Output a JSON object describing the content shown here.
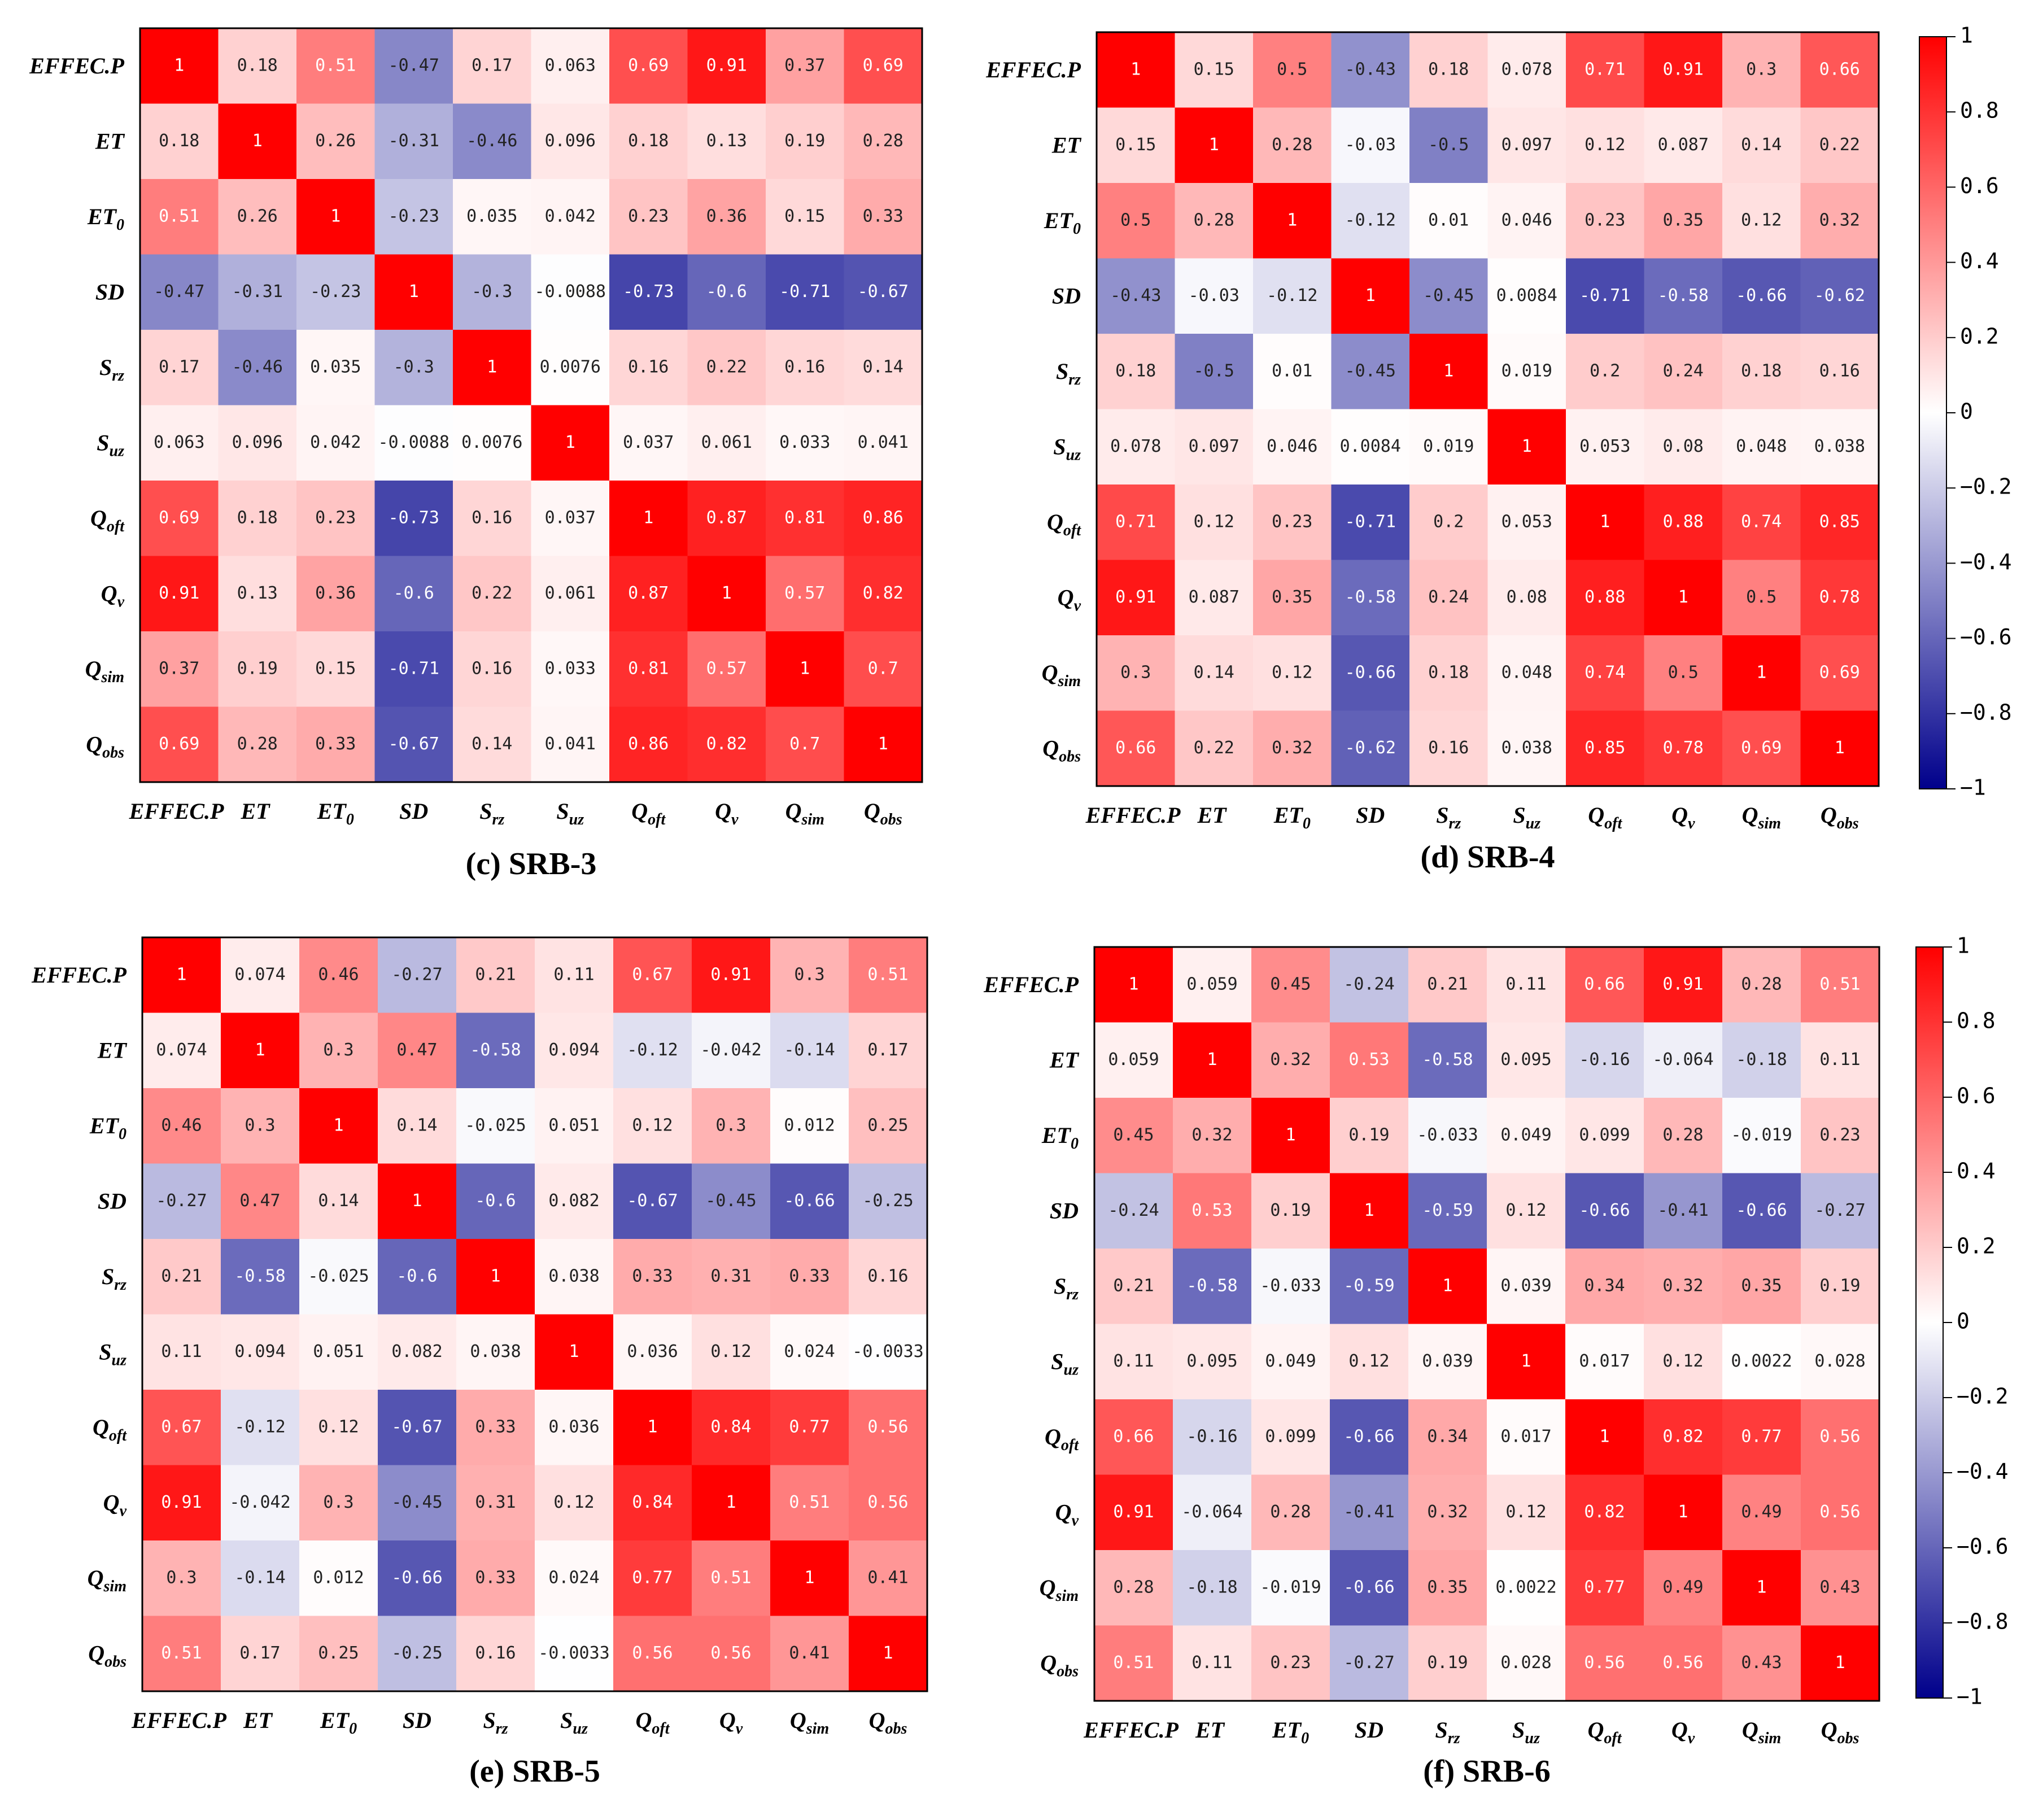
{
  "chart_data": [
    {
      "type": "heatmap",
      "title": "(c) SRB-3",
      "labels": [
        "EFFEC.P",
        "ET",
        "ET0",
        "SD",
        "Srz",
        "Suz",
        "Qoft",
        "Qv",
        "Qsim",
        "Qobs"
      ],
      "values": [
        [
          "1",
          "0.18",
          "0.51",
          "-0.47",
          "0.17",
          "0.063",
          "0.69",
          "0.91",
          "0.37",
          "0.69"
        ],
        [
          "0.18",
          "1",
          "0.26",
          "-0.31",
          "-0.46",
          "0.096",
          "0.18",
          "0.13",
          "0.19",
          "0.28"
        ],
        [
          "0.51",
          "0.26",
          "1",
          "-0.23",
          "0.035",
          "0.042",
          "0.23",
          "0.36",
          "0.15",
          "0.33"
        ],
        [
          "-0.47",
          "-0.31",
          "-0.23",
          "1",
          "-0.3",
          "-0.0088",
          "-0.73",
          "-0.6",
          "-0.71",
          "-0.67"
        ],
        [
          "0.17",
          "-0.46",
          "0.035",
          "-0.3",
          "1",
          "0.0076",
          "0.16",
          "0.22",
          "0.16",
          "0.14"
        ],
        [
          "0.063",
          "0.096",
          "0.042",
          "-0.0088",
          "0.0076",
          "1",
          "0.037",
          "0.061",
          "0.033",
          "0.041"
        ],
        [
          "0.69",
          "0.18",
          "0.23",
          "-0.73",
          "0.16",
          "0.037",
          "1",
          "0.87",
          "0.81",
          "0.86"
        ],
        [
          "0.91",
          "0.13",
          "0.36",
          "-0.6",
          "0.22",
          "0.061",
          "0.87",
          "1",
          "0.57",
          "0.82"
        ],
        [
          "0.37",
          "0.19",
          "0.15",
          "-0.71",
          "0.16",
          "0.033",
          "0.81",
          "0.57",
          "1",
          "0.7"
        ],
        [
          "0.69",
          "0.28",
          "0.33",
          "-0.67",
          "0.14",
          "0.041",
          "0.86",
          "0.82",
          "0.7",
          "1"
        ]
      ]
    },
    {
      "type": "heatmap",
      "title": "(d) SRB-4",
      "labels": [
        "EFFEC.P",
        "ET",
        "ET0",
        "SD",
        "Srz",
        "Suz",
        "Qoft",
        "Qv",
        "Qsim",
        "Qobs"
      ],
      "values": [
        [
          "1",
          "0.15",
          "0.5",
          "-0.43",
          "0.18",
          "0.078",
          "0.71",
          "0.91",
          "0.3",
          "0.66"
        ],
        [
          "0.15",
          "1",
          "0.28",
          "-0.03",
          "-0.5",
          "0.097",
          "0.12",
          "0.087",
          "0.14",
          "0.22"
        ],
        [
          "0.5",
          "0.28",
          "1",
          "-0.12",
          "0.01",
          "0.046",
          "0.23",
          "0.35",
          "0.12",
          "0.32"
        ],
        [
          "-0.43",
          "-0.03",
          "-0.12",
          "1",
          "-0.45",
          "0.0084",
          "-0.71",
          "-0.58",
          "-0.66",
          "-0.62"
        ],
        [
          "0.18",
          "-0.5",
          "0.01",
          "-0.45",
          "1",
          "0.019",
          "0.2",
          "0.24",
          "0.18",
          "0.16"
        ],
        [
          "0.078",
          "0.097",
          "0.046",
          "0.0084",
          "0.019",
          "1",
          "0.053",
          "0.08",
          "0.048",
          "0.038"
        ],
        [
          "0.71",
          "0.12",
          "0.23",
          "-0.71",
          "0.2",
          "0.053",
          "1",
          "0.88",
          "0.74",
          "0.85"
        ],
        [
          "0.91",
          "0.087",
          "0.35",
          "-0.58",
          "0.24",
          "0.08",
          "0.88",
          "1",
          "0.5",
          "0.78"
        ],
        [
          "0.3",
          "0.14",
          "0.12",
          "-0.66",
          "0.18",
          "0.048",
          "0.74",
          "0.5",
          "1",
          "0.69"
        ],
        [
          "0.66",
          "0.22",
          "0.32",
          "-0.62",
          "0.16",
          "0.038",
          "0.85",
          "0.78",
          "0.69",
          "1"
        ]
      ]
    },
    {
      "type": "heatmap",
      "title": "(e) SRB-5",
      "labels": [
        "EFFEC.P",
        "ET",
        "ET0",
        "SD",
        "Srz",
        "Suz",
        "Qoft",
        "Qv",
        "Qsim",
        "Qobs"
      ],
      "values": [
        [
          "1",
          "0.074",
          "0.46",
          "-0.27",
          "0.21",
          "0.11",
          "0.67",
          "0.91",
          "0.3",
          "0.51"
        ],
        [
          "0.074",
          "1",
          "0.3",
          "0.47",
          "-0.58",
          "0.094",
          "-0.12",
          "-0.042",
          "-0.14",
          "0.17"
        ],
        [
          "0.46",
          "0.3",
          "1",
          "0.14",
          "-0.025",
          "0.051",
          "0.12",
          "0.3",
          "0.012",
          "0.25"
        ],
        [
          "-0.27",
          "0.47",
          "0.14",
          "1",
          "-0.6",
          "0.082",
          "-0.67",
          "-0.45",
          "-0.66",
          "-0.25"
        ],
        [
          "0.21",
          "-0.58",
          "-0.025",
          "-0.6",
          "1",
          "0.038",
          "0.33",
          "0.31",
          "0.33",
          "0.16"
        ],
        [
          "0.11",
          "0.094",
          "0.051",
          "0.082",
          "0.038",
          "1",
          "0.036",
          "0.12",
          "0.024",
          "-0.0033"
        ],
        [
          "0.67",
          "-0.12",
          "0.12",
          "-0.67",
          "0.33",
          "0.036",
          "1",
          "0.84",
          "0.77",
          "0.56"
        ],
        [
          "0.91",
          "-0.042",
          "0.3",
          "-0.45",
          "0.31",
          "0.12",
          "0.84",
          "1",
          "0.51",
          "0.56"
        ],
        [
          "0.3",
          "-0.14",
          "0.012",
          "-0.66",
          "0.33",
          "0.024",
          "0.77",
          "0.51",
          "1",
          "0.41"
        ],
        [
          "0.51",
          "0.17",
          "0.25",
          "-0.25",
          "0.16",
          "-0.0033",
          "0.56",
          "0.56",
          "0.41",
          "1"
        ]
      ]
    },
    {
      "type": "heatmap",
      "title": "(f) SRB-6",
      "labels": [
        "EFFEC.P",
        "ET",
        "ET0",
        "SD",
        "Srz",
        "Suz",
        "Qoft",
        "Qv",
        "Qsim",
        "Qobs"
      ],
      "values": [
        [
          "1",
          "0.059",
          "0.45",
          "-0.24",
          "0.21",
          "0.11",
          "0.66",
          "0.91",
          "0.28",
          "0.51"
        ],
        [
          "0.059",
          "1",
          "0.32",
          "0.53",
          "-0.58",
          "0.095",
          "-0.16",
          "-0.064",
          "-0.18",
          "0.11"
        ],
        [
          "0.45",
          "0.32",
          "1",
          "0.19",
          "-0.033",
          "0.049",
          "0.099",
          "0.28",
          "-0.019",
          "0.23"
        ],
        [
          "-0.24",
          "0.53",
          "0.19",
          "1",
          "-0.59",
          "0.12",
          "-0.66",
          "-0.41",
          "-0.66",
          "-0.27"
        ],
        [
          "0.21",
          "-0.58",
          "-0.033",
          "-0.59",
          "1",
          "0.039",
          "0.34",
          "0.32",
          "0.35",
          "0.19"
        ],
        [
          "0.11",
          "0.095",
          "0.049",
          "0.12",
          "0.039",
          "1",
          "0.017",
          "0.12",
          "0.0022",
          "0.028"
        ],
        [
          "0.66",
          "-0.16",
          "0.099",
          "-0.66",
          "0.34",
          "0.017",
          "1",
          "0.82",
          "0.77",
          "0.56"
        ],
        [
          "0.91",
          "-0.064",
          "0.28",
          "-0.41",
          "0.32",
          "0.12",
          "0.82",
          "1",
          "0.49",
          "0.56"
        ],
        [
          "0.28",
          "-0.18",
          "-0.019",
          "-0.66",
          "0.35",
          "0.0022",
          "0.77",
          "0.49",
          "1",
          "0.43"
        ],
        [
          "0.51",
          "0.11",
          "0.23",
          "-0.27",
          "0.19",
          "0.028",
          "0.56",
          "0.56",
          "0.43",
          "1"
        ]
      ]
    }
  ],
  "colorbar": {
    "range": [
      -1,
      1
    ],
    "ticks": [
      "1",
      "0.8",
      "0.6",
      "0.4",
      "0.2",
      "0",
      "−0.2",
      "−0.4",
      "−0.6",
      "−0.8",
      "−1"
    ],
    "colors": {
      "neg": "#00008b",
      "mid": "#ffffff",
      "pos": "#ff0000"
    }
  }
}
